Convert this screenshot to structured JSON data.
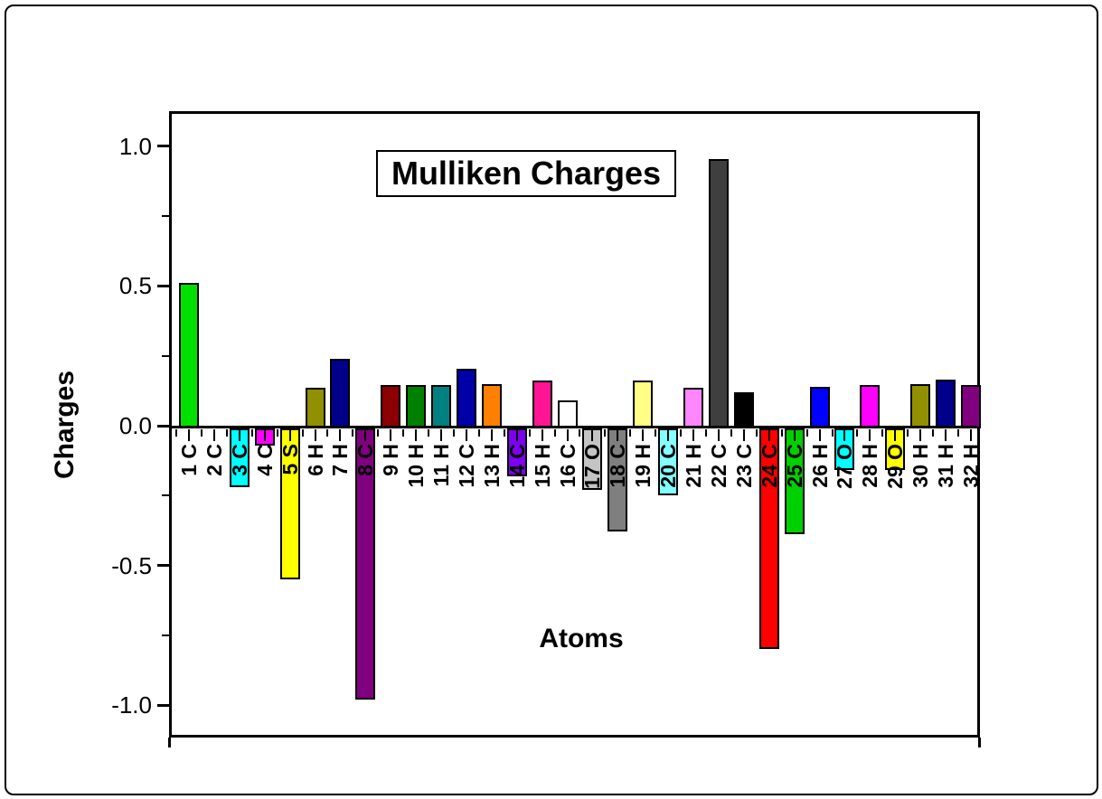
{
  "figure": {
    "title": "Mulliken Charges",
    "xlabel": "Atoms",
    "ylabel": "Charges"
  },
  "chart_data": {
    "type": "bar",
    "title": "Mulliken Charges",
    "xlabel": "Atoms",
    "ylabel": "Charges",
    "ylim": [
      -1.12,
      1.12
    ],
    "grid": false,
    "legend": false,
    "y_tick_labels": [
      "1.0",
      "0.5",
      "0.0",
      "-0.5",
      "-1.0"
    ],
    "y_major_ticks": [
      1.0,
      0.5,
      0.0,
      -0.5,
      -1.0
    ],
    "y_minor_ticks": [
      0.75,
      0.25,
      -0.25,
      -0.75
    ],
    "bar_border_color": "#000000",
    "atoms": [
      {
        "label": "1 C",
        "value": 0.52,
        "color": "#00e000"
      },
      {
        "label": "2 C",
        "value": 0.0,
        "color": null
      },
      {
        "label": "3 C",
        "value": -0.21,
        "color": "#00ffff"
      },
      {
        "label": "4 C",
        "value": -0.06,
        "color": "#ff00ff"
      },
      {
        "label": "5 S",
        "value": -0.54,
        "color": "#ffff00"
      },
      {
        "label": "6 H",
        "value": 0.145,
        "color": "#909000"
      },
      {
        "label": "7 H",
        "value": 0.25,
        "color": "#00008b"
      },
      {
        "label": "8 C",
        "value": -0.97,
        "color": "#800080"
      },
      {
        "label": "9 H",
        "value": 0.155,
        "color": "#8b0000"
      },
      {
        "label": "10 H",
        "value": 0.155,
        "color": "#008000"
      },
      {
        "label": "11 H",
        "value": 0.155,
        "color": "#008080"
      },
      {
        "label": "12 C",
        "value": 0.215,
        "color": "#0000a8"
      },
      {
        "label": "13 H",
        "value": 0.16,
        "color": "#ff8000"
      },
      {
        "label": "14 C",
        "value": -0.17,
        "color": "#7d00f0"
      },
      {
        "label": "15 H",
        "value": 0.17,
        "color": "#ff1493"
      },
      {
        "label": "16 C",
        "value": 0.1,
        "color": "#ffffff"
      },
      {
        "label": "17 O",
        "value": -0.22,
        "color": "#c4c4c4"
      },
      {
        "label": "18 C",
        "value": -0.37,
        "color": "#7f7f7f"
      },
      {
        "label": "19 H",
        "value": 0.17,
        "color": "#ffff86"
      },
      {
        "label": "20 C",
        "value": -0.24,
        "color": "#84ffff"
      },
      {
        "label": "21 H",
        "value": 0.145,
        "color": "#ff86ff"
      },
      {
        "label": "22 C",
        "value": 0.965,
        "color": "#3f3f3f"
      },
      {
        "label": "23 C",
        "value": 0.13,
        "color": "#000000"
      },
      {
        "label": "24 C",
        "value": -0.79,
        "color": "#ff0000"
      },
      {
        "label": "25 C",
        "value": -0.38,
        "color": "#00d000"
      },
      {
        "label": "26 H",
        "value": 0.15,
        "color": "#0000ff"
      },
      {
        "label": "27 O",
        "value": -0.15,
        "color": "#00ffff"
      },
      {
        "label": "28 H",
        "value": 0.155,
        "color": "#ff00ff"
      },
      {
        "label": "29 O",
        "value": -0.15,
        "color": "#ffff00"
      },
      {
        "label": "30 H",
        "value": 0.16,
        "color": "#909000"
      },
      {
        "label": "31 H",
        "value": 0.175,
        "color": "#00008b"
      },
      {
        "label": "32 H",
        "value": 0.155,
        "color": "#800080"
      }
    ]
  }
}
